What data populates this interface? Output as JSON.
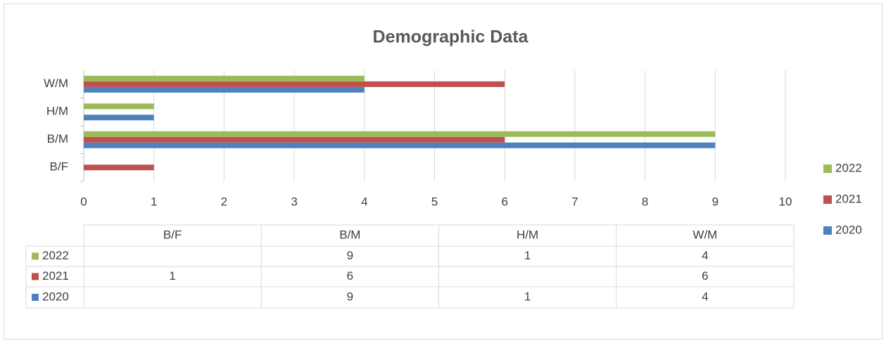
{
  "chart_data": {
    "type": "hbar",
    "title": "Demographic Data",
    "categories": [
      "B/F",
      "B/M",
      "H/M",
      "W/M"
    ],
    "series": [
      {
        "name": "2020",
        "color": "#4f81bd",
        "values": [
          null,
          9,
          1,
          4
        ]
      },
      {
        "name": "2021",
        "color": "#c0504d",
        "values": [
          1,
          6,
          null,
          6
        ]
      },
      {
        "name": "2022",
        "color": "#9bbb59",
        "values": [
          null,
          9,
          1,
          4
        ]
      }
    ],
    "xlim": [
      0,
      10
    ],
    "xticks": [
      0,
      1,
      2,
      3,
      4,
      5,
      6,
      7,
      8,
      9,
      10
    ],
    "grid": true,
    "legend": "right",
    "data_table": true
  }
}
